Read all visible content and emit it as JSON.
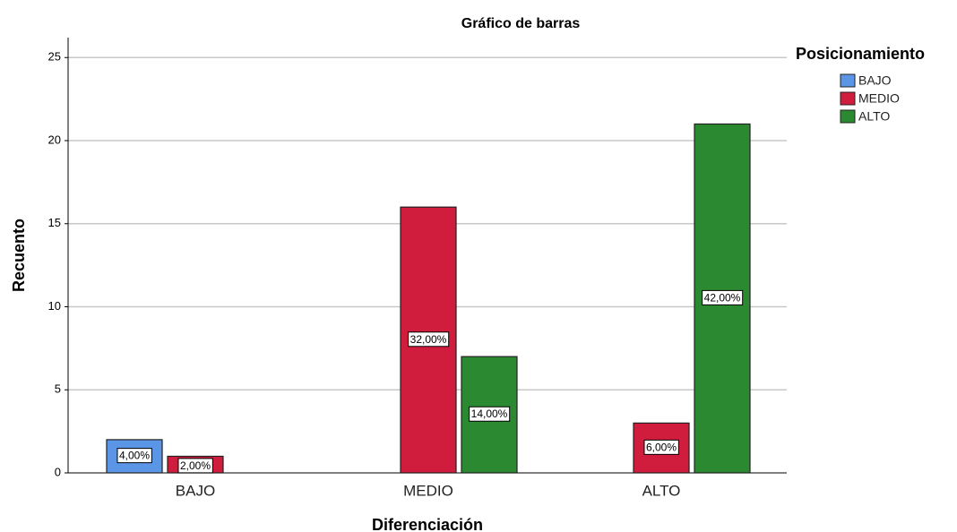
{
  "chart_data": {
    "type": "bar",
    "title": "Gráfico de barras",
    "x_label": "Diferenciación",
    "y_label": "Recuento",
    "legend_title": "Posicionamiento",
    "legend": "right",
    "grid": true,
    "categories": [
      "BAJO",
      "MEDIO",
      "ALTO"
    ],
    "series": [
      {
        "name": "BAJO",
        "color": "#5b96e6",
        "values": [
          2,
          null,
          null
        ],
        "percent_values": [
          4,
          null,
          null
        ],
        "percent_labels": [
          "4,00%",
          null,
          null
        ]
      },
      {
        "name": "MEDIO",
        "color": "#d01c3d",
        "values": [
          1,
          16,
          3
        ],
        "percent_values": [
          2,
          32,
          6
        ],
        "percent_labels": [
          "2,00%",
          "32,00%",
          "6,00%"
        ]
      },
      {
        "name": "ALTO",
        "color": "#2b8a31",
        "values": [
          null,
          7,
          21
        ],
        "percent_values": [
          null,
          14,
          42
        ],
        "percent_labels": [
          null,
          "14,00%",
          "42,00%"
        ]
      }
    ],
    "ylim": [
      0,
      26.2
    ],
    "yticks": [
      0,
      5,
      10,
      15,
      20,
      25
    ]
  }
}
